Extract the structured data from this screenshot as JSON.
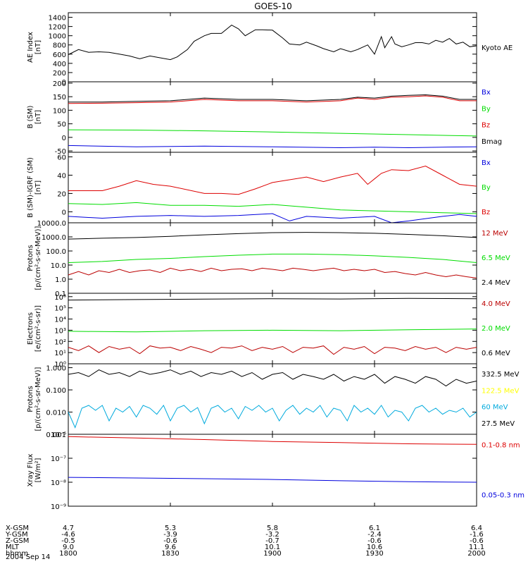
{
  "title": "GOES-10",
  "date": "2004 Sep 14",
  "colors": {
    "black": "#000000",
    "blue": "#0000dd",
    "green": "#00dd00",
    "red": "#dd0000",
    "dark_red": "#bb0000",
    "yellow": "#ffff00",
    "cyan": "#00aadd"
  },
  "ephemeris": {
    "row_labels": [
      "X-GSM",
      "Y-GSM",
      "Z-GSM",
      "MLT",
      "hhmm"
    ],
    "columns": [
      [
        "4.7",
        "-4.6",
        "-0.5",
        "9.0",
        "1800"
      ],
      [
        "5.3",
        "-3.9",
        "-0.6",
        "9.6",
        "1830"
      ],
      [
        "5.8",
        "-3.2",
        "-0.7",
        "10.1",
        "1900"
      ],
      [
        "6.1",
        "-2.4",
        "-0.6",
        "10.6",
        "1930"
      ],
      [
        "6.4",
        "-1.6",
        "-0.6",
        "11.1",
        "2000"
      ]
    ]
  },
  "chart_data": [
    {
      "type": "line",
      "ylabel": [
        "AE Index",
        "[nT]"
      ],
      "ticks": [
        "0",
        "200",
        "400",
        "600",
        "800",
        "1000",
        "1200",
        "1400"
      ],
      "tick_values": [
        0,
        200,
        400,
        600,
        800,
        1000,
        1200,
        1400
      ],
      "ylim": [
        0,
        1500
      ],
      "x_unit": "minutes since 1800",
      "xlim": [
        0,
        120
      ],
      "series": [
        {
          "name": "Kyoto AE",
          "color": "black",
          "x": [
            0,
            3,
            6,
            9,
            12,
            15,
            18,
            21,
            24,
            27,
            30,
            32,
            35,
            37,
            40,
            42,
            45,
            48,
            50,
            52,
            55,
            57,
            60,
            63,
            65,
            68,
            70,
            73,
            75,
            78,
            80,
            83,
            85,
            88,
            90,
            92,
            93,
            95,
            96,
            98,
            100,
            102,
            104,
            106,
            108,
            110,
            112,
            114,
            116,
            118,
            120
          ],
          "y": [
            590,
            700,
            640,
            650,
            640,
            600,
            560,
            500,
            560,
            520,
            480,
            540,
            700,
            880,
            1000,
            1050,
            1050,
            1230,
            1150,
            1000,
            1130,
            1130,
            1120,
            950,
            820,
            800,
            860,
            780,
            720,
            650,
            720,
            650,
            700,
            800,
            600,
            980,
            740,
            980,
            820,
            760,
            800,
            850,
            850,
            820,
            900,
            860,
            940,
            820,
            860,
            760,
            780
          ]
        }
      ]
    },
    {
      "type": "line",
      "ylabel": [
        "B (SM)",
        "[nT]"
      ],
      "ticks": [
        "-50",
        "0",
        "50",
        "100",
        "150",
        "200"
      ],
      "tick_values": [
        -50,
        0,
        50,
        100,
        150,
        200
      ],
      "ylim": [
        -55,
        205
      ],
      "xlim": [
        0,
        120
      ],
      "series": [
        {
          "name": "Bx",
          "color": "blue",
          "x": [
            0,
            20,
            40,
            60,
            80,
            90,
            100,
            110,
            120
          ],
          "y": [
            -30,
            -35,
            -32,
            -35,
            -38,
            -36,
            -38,
            -36,
            -35
          ]
        },
        {
          "name": "By",
          "color": "green",
          "x": [
            0,
            20,
            40,
            60,
            80,
            100,
            120
          ],
          "y": [
            28,
            27,
            24,
            20,
            15,
            10,
            5
          ]
        },
        {
          "name": "Bz",
          "color": "red",
          "x": [
            0,
            10,
            20,
            30,
            40,
            50,
            60,
            70,
            80,
            85,
            90,
            95,
            100,
            105,
            110,
            115,
            120
          ],
          "y": [
            125,
            126,
            128,
            130,
            140,
            135,
            135,
            130,
            135,
            145,
            140,
            148,
            150,
            153,
            148,
            135,
            135
          ]
        },
        {
          "name": "Bmag",
          "color": "black",
          "x": [
            0,
            10,
            20,
            30,
            40,
            50,
            60,
            70,
            80,
            85,
            90,
            95,
            100,
            105,
            110,
            115,
            120
          ],
          "y": [
            130,
            130,
            133,
            135,
            145,
            140,
            140,
            135,
            140,
            148,
            145,
            152,
            155,
            157,
            152,
            140,
            140
          ]
        }
      ]
    },
    {
      "type": "line",
      "ylabel": [
        "B (SM)-IGRF (SM)",
        "[nT]"
      ],
      "ticks": [
        "0",
        "20",
        "40",
        "60"
      ],
      "tick_values": [
        0,
        20,
        40,
        60
      ],
      "ylim": [
        -12,
        65
      ],
      "xlim": [
        0,
        120
      ],
      "series": [
        {
          "name": "Bx",
          "color": "blue",
          "x": [
            0,
            10,
            20,
            30,
            40,
            50,
            60,
            65,
            70,
            80,
            90,
            95,
            100,
            110,
            115,
            120
          ],
          "y": [
            -5,
            -7,
            -5,
            -4,
            -5,
            -4,
            -2,
            -10,
            -5,
            -7,
            -5,
            -12,
            -10,
            -5,
            -3,
            -5
          ]
        },
        {
          "name": "By",
          "color": "green",
          "x": [
            0,
            10,
            20,
            30,
            40,
            50,
            60,
            70,
            80,
            90,
            100,
            110,
            120
          ],
          "y": [
            9,
            8,
            10,
            7,
            7,
            6,
            8,
            5,
            2,
            1,
            0,
            -1,
            -2
          ]
        },
        {
          "name": "Bz",
          "color": "red",
          "x": [
            0,
            10,
            15,
            20,
            25,
            30,
            40,
            45,
            50,
            55,
            60,
            70,
            75,
            80,
            85,
            88,
            90,
            92,
            95,
            100,
            105,
            110,
            115,
            120
          ],
          "y": [
            23,
            23,
            28,
            34,
            30,
            28,
            20,
            20,
            19,
            25,
            32,
            38,
            33,
            38,
            42,
            30,
            36,
            42,
            46,
            45,
            50,
            40,
            30,
            28
          ]
        }
      ]
    },
    {
      "type": "line",
      "log": true,
      "ylabel": [
        "Protons",
        "[p/(cm²-s-sr-MeV)]"
      ],
      "ticks": [
        "0.1",
        "1.0",
        "10.0",
        "100.0",
        "1000.0",
        "10000.0"
      ],
      "tick_values": [
        0.1,
        1,
        10,
        100,
        1000,
        10000
      ],
      "ylim": [
        0.1,
        10000
      ],
      "xlim": [
        0,
        120
      ],
      "series": [
        {
          "name": "12 MeV",
          "color": "dark_red",
          "x": [
            0,
            3,
            6,
            9,
            12,
            15,
            18,
            21,
            24,
            27,
            30,
            33,
            36,
            39,
            42,
            45,
            48,
            51,
            54,
            57,
            60,
            63,
            66,
            69,
            72,
            75,
            78,
            81,
            84,
            87,
            90,
            93,
            96,
            99,
            102,
            105,
            108,
            111,
            114,
            117,
            120
          ],
          "y": [
            2,
            3.5,
            2,
            4,
            3,
            5,
            3,
            4,
            4.5,
            3,
            6,
            4,
            5,
            3.5,
            6,
            4,
            5,
            5.5,
            4,
            6,
            5,
            4,
            6,
            5,
            4,
            5,
            6,
            4,
            5,
            4,
            5,
            3,
            3.5,
            2.5,
            2,
            3,
            2,
            1.5,
            2,
            1.5,
            1.2
          ]
        },
        {
          "name": "6.5 MeV",
          "color": "green",
          "x": [
            0,
            10,
            20,
            30,
            40,
            50,
            60,
            70,
            80,
            90,
            100,
            110,
            120
          ],
          "y": [
            15,
            18,
            25,
            30,
            40,
            50,
            60,
            60,
            55,
            45,
            35,
            25,
            15
          ]
        },
        {
          "name": "2.4 MeV",
          "color": "black",
          "x": [
            0,
            10,
            20,
            30,
            40,
            50,
            60,
            70,
            80,
            90,
            100,
            110,
            120
          ],
          "y": [
            700,
            800,
            900,
            1100,
            1400,
            1700,
            2000,
            2100,
            2000,
            1800,
            1500,
            1200,
            900
          ]
        }
      ]
    },
    {
      "type": "line",
      "log": true,
      "ylabel": [
        "Electrons",
        "[e/(cm²-s-sr)]"
      ],
      "ticks": [
        "10⁰",
        "10¹",
        "10²",
        "10³",
        "10⁴",
        "10⁵",
        "10⁶"
      ],
      "tick_values": [
        1,
        10,
        100,
        1000,
        10000,
        100000,
        1000000
      ],
      "ylim": [
        1,
        2000000
      ],
      "xlim": [
        0,
        120
      ],
      "series": [
        {
          "name": "4.0 MeV",
          "color": "dark_red",
          "x": [
            0,
            3,
            6,
            9,
            12,
            15,
            18,
            21,
            24,
            27,
            30,
            33,
            36,
            39,
            42,
            45,
            48,
            51,
            54,
            57,
            60,
            63,
            66,
            69,
            72,
            75,
            78,
            81,
            84,
            87,
            90,
            93,
            96,
            99,
            102,
            105,
            108,
            111,
            114,
            117,
            120
          ],
          "y": [
            30,
            15,
            40,
            10,
            35,
            20,
            30,
            8,
            40,
            25,
            30,
            15,
            35,
            20,
            10,
            30,
            25,
            40,
            15,
            30,
            20,
            35,
            10,
            30,
            25,
            40,
            7,
            30,
            20,
            35,
            8,
            30,
            25,
            15,
            35,
            20,
            30,
            10,
            30,
            20,
            30
          ]
        },
        {
          "name": "2.0 MeV",
          "color": "green",
          "x": [
            0,
            20,
            40,
            60,
            80,
            100,
            120
          ],
          "y": [
            800,
            700,
            900,
            1000,
            900,
            1100,
            1300
          ]
        },
        {
          "name": "0.6 MeV",
          "color": "black",
          "x": [
            0,
            20,
            40,
            60,
            80,
            100,
            120
          ],
          "y": [
            500000,
            550000,
            600000,
            650000,
            620000,
            700000,
            650000
          ]
        }
      ]
    },
    {
      "type": "line",
      "log": true,
      "ylabel": [
        "Protons",
        "[p/(cm²-s-sr-MeV)]"
      ],
      "ticks": [
        "0.001",
        "0.010",
        "0.100",
        "1.000"
      ],
      "tick_values": [
        0.001,
        0.01,
        0.1,
        1
      ],
      "ylim": [
        0.001,
        1.5
      ],
      "xlim": [
        0,
        120
      ],
      "series": [
        {
          "name": "332.5 MeV",
          "color": "black",
          "x": [
            0,
            3,
            6,
            9,
            12,
            15,
            18,
            21,
            24,
            27,
            30,
            33,
            36,
            39,
            42,
            45,
            48,
            51,
            54,
            57,
            60,
            63,
            66,
            69,
            72,
            75,
            78,
            81,
            84,
            87,
            90,
            93,
            96,
            99,
            102,
            105,
            108,
            111,
            114,
            117,
            120
          ],
          "y": [
            0.5,
            0.6,
            0.4,
            0.8,
            0.5,
            0.6,
            0.4,
            0.7,
            0.5,
            0.6,
            0.8,
            0.5,
            0.7,
            0.4,
            0.6,
            0.5,
            0.7,
            0.4,
            0.6,
            0.3,
            0.5,
            0.6,
            0.3,
            0.5,
            0.4,
            0.3,
            0.5,
            0.25,
            0.4,
            0.3,
            0.5,
            0.2,
            0.4,
            0.3,
            0.2,
            0.4,
            0.3,
            0.15,
            0.3,
            0.2,
            0.25
          ]
        },
        {
          "name": "122.5 MeV",
          "color": "yellow",
          "x": [],
          "y": []
        },
        {
          "name": "60 MeV",
          "color": "cyan",
          "x": [
            0,
            2,
            4,
            6,
            8,
            10,
            12,
            14,
            16,
            18,
            20,
            22,
            24,
            26,
            28,
            30,
            32,
            34,
            36,
            38,
            40,
            42,
            44,
            46,
            48,
            50,
            52,
            54,
            56,
            58,
            60,
            62,
            64,
            66,
            68,
            70,
            72,
            74,
            76,
            78,
            80,
            82,
            84,
            86,
            88,
            90,
            92,
            94,
            96,
            98,
            100,
            102,
            104,
            106,
            108,
            110,
            112,
            114,
            116,
            118,
            120
          ],
          "y": [
            0.01,
            0.002,
            0.015,
            0.02,
            0.012,
            0.02,
            0.004,
            0.015,
            0.01,
            0.018,
            0.006,
            0.02,
            0.015,
            0.008,
            0.02,
            0.004,
            0.015,
            0.02,
            0.01,
            0.016,
            0.003,
            0.015,
            0.02,
            0.01,
            0.015,
            0.005,
            0.018,
            0.012,
            0.02,
            0.01,
            0.015,
            0.004,
            0.012,
            0.02,
            0.008,
            0.015,
            0.01,
            0.02,
            0.006,
            0.015,
            0.012,
            0.004,
            0.02,
            0.01,
            0.015,
            0.008,
            0.02,
            0.006,
            0.012,
            0.01,
            0.004,
            0.015,
            0.02,
            0.01,
            0.015,
            0.008,
            0.012,
            0.01,
            0.015,
            0.006,
            0.01
          ]
        },
        {
          "name": "27.5 MeV",
          "color": "black",
          "x": [],
          "y": []
        }
      ]
    },
    {
      "type": "line",
      "log": true,
      "ylabel": [
        "Xray Flux",
        "[W/m²]"
      ],
      "ticks": [
        "10⁻⁹",
        "10⁻⁸",
        "10⁻⁷",
        "10⁻⁶"
      ],
      "tick_values": [
        1e-09,
        1e-08,
        1e-07,
        1e-06
      ],
      "ylim": [
        1e-09,
        1e-06
      ],
      "xlim": [
        0,
        120
      ],
      "series": [
        {
          "name": "0.1-0.8 nm",
          "color": "red",
          "x": [
            0,
            20,
            40,
            60,
            80,
            100,
            120
          ],
          "y": [
            8e-07,
            7e-07,
            6e-07,
            5e-07,
            4.5e-07,
            4e-07,
            3.8e-07
          ]
        },
        {
          "name": "0.05-0.3 nm",
          "color": "blue",
          "x": [
            0,
            20,
            40,
            60,
            80,
            100,
            120
          ],
          "y": [
            1.6e-08,
            1.5e-08,
            1.4e-08,
            1.3e-08,
            1.15e-08,
            1.05e-08,
            1e-08
          ]
        }
      ]
    }
  ]
}
